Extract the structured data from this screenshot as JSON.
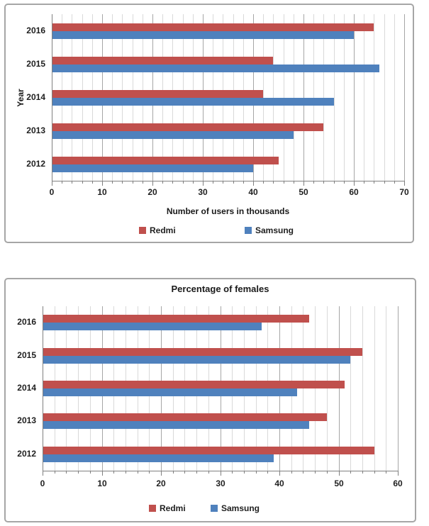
{
  "chart_data": [
    {
      "type": "bar",
      "orientation": "horizontal",
      "title": "",
      "xlabel": "Number of users in thousands",
      "ylabel": "Year",
      "categories": [
        "2016",
        "2015",
        "2014",
        "2013",
        "2012"
      ],
      "series": [
        {
          "name": "Redmi",
          "color": "#C0504D",
          "values": [
            64,
            44,
            42,
            54,
            45
          ]
        },
        {
          "name": "Samsung",
          "color": "#4F81BD",
          "values": [
            60,
            65,
            56,
            48,
            40
          ]
        }
      ],
      "xlim": [
        0,
        70
      ],
      "x_major": 10,
      "x_minor": 2,
      "tick_labels": [
        "0",
        "10",
        "20",
        "30",
        "40",
        "50",
        "60",
        "70"
      ],
      "grid": "minor-vertical",
      "legend_position": "bottom",
      "legend": [
        "Redmi",
        "Samsung"
      ]
    },
    {
      "type": "bar",
      "orientation": "horizontal",
      "title": "Percentage of females",
      "xlabel": "",
      "ylabel": "",
      "categories": [
        "2016",
        "2015",
        "2014",
        "2013",
        "2012"
      ],
      "series": [
        {
          "name": "Redmi",
          "color": "#C0504D",
          "values": [
            45,
            54,
            51,
            48,
            56
          ]
        },
        {
          "name": "Samsung",
          "color": "#4F81BD",
          "values": [
            37,
            52,
            43,
            45,
            39
          ]
        }
      ],
      "xlim": [
        0,
        60
      ],
      "x_major": 10,
      "x_minor": 2,
      "tick_labels": [
        "0",
        "10",
        "20",
        "30",
        "40",
        "50",
        "60"
      ],
      "grid": "minor-vertical",
      "legend_position": "bottom",
      "legend": [
        "Redmi",
        "Samsung"
      ]
    }
  ]
}
